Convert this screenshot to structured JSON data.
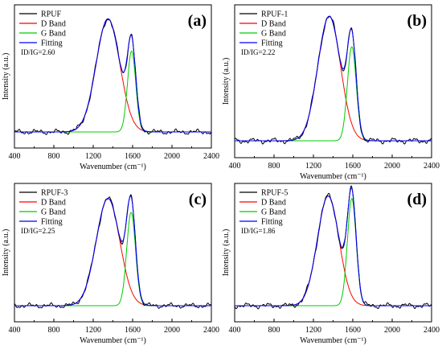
{
  "chart_data": [
    {
      "type": "line",
      "panel_label": "(a)",
      "xlabel": "Wavenumber (cm⁻¹)",
      "ylabel": "Intensity (a.u.)",
      "xlim": [
        400,
        2400
      ],
      "x_ticks": [
        "400",
        "800",
        "1200",
        "1600",
        "2000",
        "2400"
      ],
      "legend": [
        "RPUF",
        "D Band",
        "G Band",
        "Fitting"
      ],
      "ratio_label": "ID/IG=2.60",
      "series_colors": [
        "#000000",
        "#ff0000",
        "#00cc00",
        "#0000ff"
      ],
      "bands": {
        "d_center": 1350,
        "d_height": 0.95,
        "d_width": 120,
        "g_center": 1590,
        "g_height": 0.68,
        "g_width": 42
      }
    },
    {
      "type": "line",
      "panel_label": "(b)",
      "xlabel": "Wavenumber (cm⁻¹)",
      "ylabel": "Intensity (a.u.)",
      "xlim": [
        400,
        2400
      ],
      "x_ticks": [
        "400",
        "800",
        "1200",
        "1600",
        "2000",
        "2400"
      ],
      "legend": [
        "RPUF-1",
        "D Band",
        "G Band",
        "Fitting"
      ],
      "ratio_label": "ID/IG=2.22",
      "series_colors": [
        "#000000",
        "#ff0000",
        "#00cc00",
        "#0000ff"
      ],
      "bands": {
        "d_center": 1360,
        "d_height": 0.98,
        "d_width": 115,
        "g_center": 1590,
        "g_height": 0.74,
        "g_width": 45
      }
    },
    {
      "type": "line",
      "panel_label": "(c)",
      "xlabel": "Wavenumber (cm⁻¹)",
      "ylabel": "Intensity (a.u.)",
      "xlim": [
        400,
        2400
      ],
      "x_ticks": [
        "400",
        "800",
        "1200",
        "1600",
        "2000",
        "2400"
      ],
      "legend": [
        "RPUF-3",
        "D Band",
        "G Band",
        "Fitting"
      ],
      "ratio_label": "ID/IG=2.25",
      "series_colors": [
        "#000000",
        "#ff0000",
        "#00cc00",
        "#0000ff"
      ],
      "bands": {
        "d_center": 1350,
        "d_height": 0.92,
        "d_width": 120,
        "g_center": 1585,
        "g_height": 0.8,
        "g_width": 45
      }
    },
    {
      "type": "line",
      "panel_label": "(d)",
      "xlabel": "Wavenumber (cm⁻¹)",
      "ylabel": "Intensity (a.u.)",
      "xlim": [
        400,
        2400
      ],
      "x_ticks": [
        "400",
        "800",
        "1200",
        "1600",
        "2000",
        "2400"
      ],
      "legend": [
        "RPUF-5",
        "D Band",
        "G Band",
        "Fitting"
      ],
      "ratio_label": "ID/IG=1.86",
      "series_colors": [
        "#000000",
        "#ff0000",
        "#00cc00",
        "#0000ff"
      ],
      "bands": {
        "d_center": 1350,
        "d_height": 0.88,
        "d_width": 110,
        "g_center": 1590,
        "g_height": 0.86,
        "g_width": 45
      }
    }
  ]
}
